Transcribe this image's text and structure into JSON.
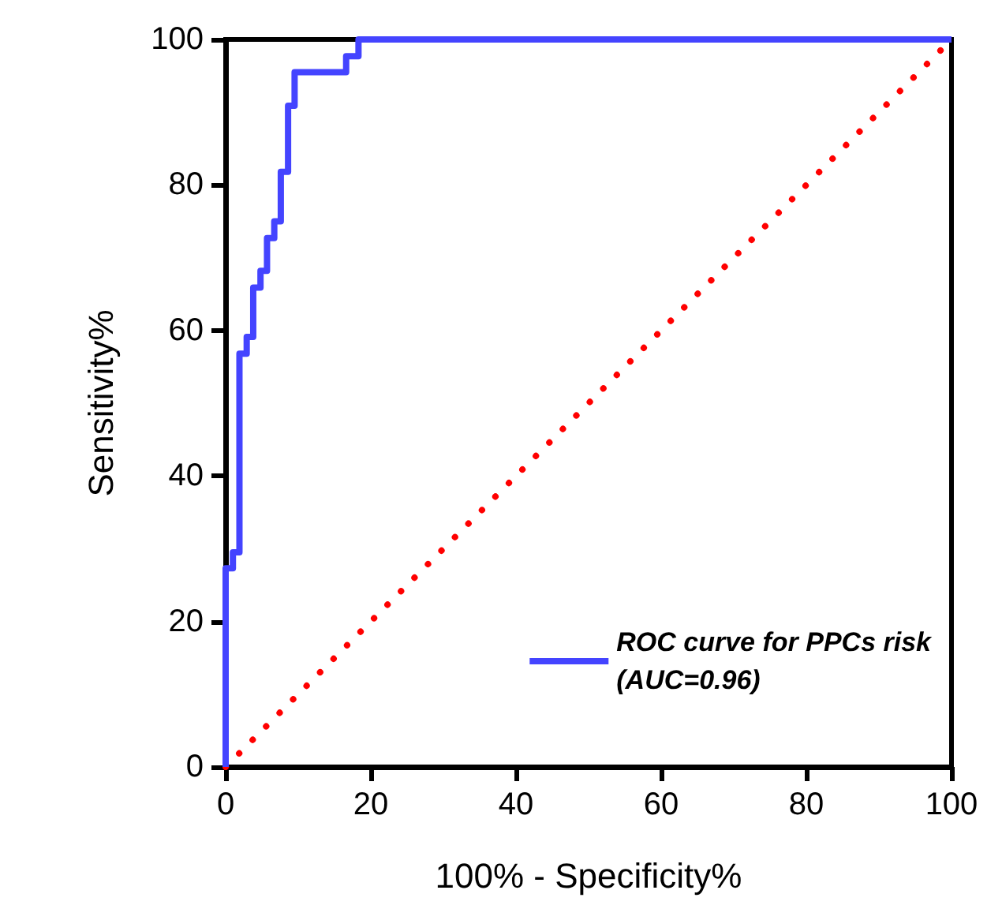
{
  "chart_data": {
    "type": "step",
    "xlabel": "100% - Specificity%",
    "ylabel": "Sensitivity%",
    "xlim": [
      0,
      100
    ],
    "xticks": [
      0,
      20,
      40,
      60,
      80,
      100
    ],
    "ylim": [
      0,
      100
    ],
    "yticks": [
      0,
      20,
      40,
      60,
      80,
      100
    ],
    "grid": false,
    "legend": "bottom right",
    "marker": "none",
    "series": [
      {
        "name": "ROC curve for PPCs risk\n(AUC=0.96)",
        "color": "#4444ff",
        "line_style": "solid",
        "x": [
          0,
          0,
          1,
          1.9,
          2.9,
          3.8,
          4.8,
          5.7,
          6.7,
          7.6,
          8.6,
          9.5,
          16.6,
          18.3,
          100
        ],
        "values": [
          0,
          27.3,
          29.5,
          56.8,
          59.1,
          65.9,
          68.2,
          72.7,
          75,
          81.8,
          90.9,
          95.5,
          97.7,
          100,
          100
        ]
      },
      {
        "type": "line",
        "color": "#ff0000",
        "line_style": "dotted",
        "x": [
          0,
          100
        ],
        "values": [
          0,
          100
        ]
      }
    ]
  }
}
